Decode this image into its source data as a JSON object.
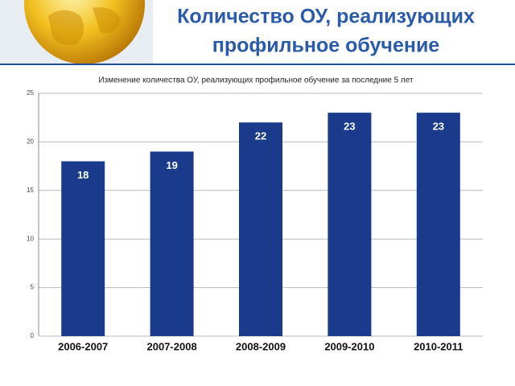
{
  "header": {
    "title_lines": [
      "Количество ОУ, реализующих",
      "профильное обучение"
    ]
  },
  "chart_data": {
    "type": "bar",
    "title": "Изменение количества ОУ, реализующих профильное обучение за последние 5 лет",
    "categories": [
      "2006-2007",
      "2007-2008",
      "2008-2009",
      "2009-2010",
      "2010-2011"
    ],
    "values": [
      18,
      19,
      22,
      23,
      23
    ],
    "color": "#1a3a8c",
    "ylim": [
      0,
      25
    ],
    "yticks": [
      0,
      5,
      10,
      15,
      20,
      25
    ],
    "grid": true
  }
}
